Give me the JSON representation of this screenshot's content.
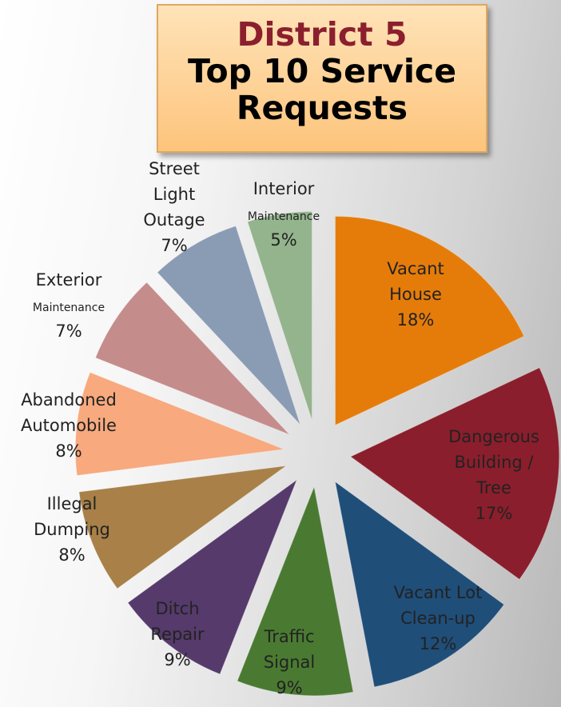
{
  "title": {
    "line1": "District 5",
    "line2": "Top 10 Service",
    "line3": "Requests"
  },
  "chart_data": {
    "type": "pie",
    "title": "District 5 Top 10 Service Requests",
    "exploded": true,
    "slices": [
      {
        "label": "Vacant House",
        "label_lines": [
          "Vacant",
          "House"
        ],
        "value": 18,
        "pct_text": "18%",
        "color": "#e57c0a"
      },
      {
        "label": "Dangerous Building / Tree",
        "label_lines": [
          "Dangerous",
          "Building /",
          "Tree"
        ],
        "value": 17,
        "pct_text": "17%",
        "color": "#8b1e2c"
      },
      {
        "label": "Vacant Lot Clean-up",
        "label_lines": [
          "Vacant Lot",
          "Clean-up"
        ],
        "value": 12,
        "pct_text": "12%",
        "color": "#1f4e79"
      },
      {
        "label": "Traffic Signal",
        "label_lines": [
          "Traffic",
          "Signal"
        ],
        "value": 9,
        "pct_text": "9%",
        "color": "#4a7a32"
      },
      {
        "label": "Ditch Repair",
        "label_lines": [
          "Ditch",
          "Repair"
        ],
        "value": 9,
        "pct_text": "9%",
        "color": "#553a6b"
      },
      {
        "label": "Illegal Dumping",
        "label_lines": [
          "Illegal",
          "Dumping"
        ],
        "value": 8,
        "pct_text": "8%",
        "color": "#a88048"
      },
      {
        "label": "Abandoned Automobile",
        "label_lines": [
          "Abandoned",
          "Automobile"
        ],
        "value": 8,
        "pct_text": "8%",
        "color": "#f8a97e"
      },
      {
        "label": "Exterior Maintenance",
        "label_lines": [
          "Exterior",
          "Maintenance"
        ],
        "value": 7,
        "pct_text": "7%",
        "color": "#c58c8c"
      },
      {
        "label": "Street Light Outage",
        "label_lines": [
          "Street",
          "Light",
          "Outage"
        ],
        "value": 7,
        "pct_text": "7%",
        "color": "#8a9bb4"
      },
      {
        "label": "Interior Maintenance",
        "label_lines": [
          "Interior",
          "Maintenance"
        ],
        "value": 5,
        "pct_text": "5%",
        "color": "#93b48c"
      }
    ]
  }
}
